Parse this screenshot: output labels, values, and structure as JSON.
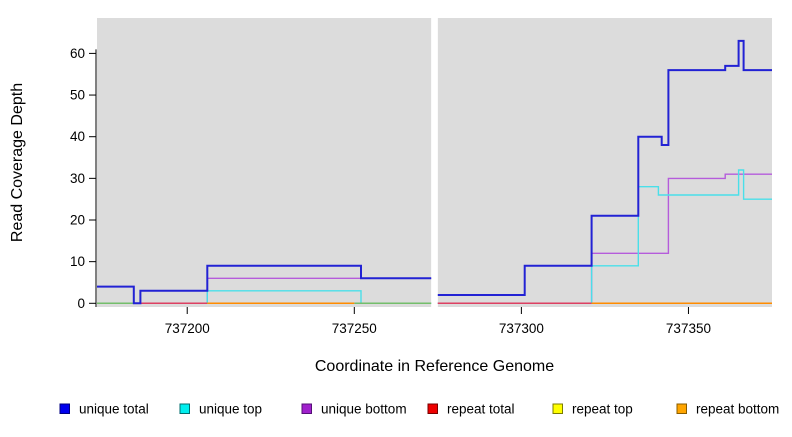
{
  "chart_data": {
    "type": "step-line",
    "title": "",
    "xlabel": "Coordinate in Reference Genome",
    "ylabel": "Read Coverage Depth",
    "xlim": [
      737173,
      737375
    ],
    "ylim": [
      0,
      68.5
    ],
    "xticks": [
      737200,
      737250,
      737300,
      737350
    ],
    "xtick_labels": [
      "737200",
      "737250",
      "737300",
      "737350"
    ],
    "yticks": [
      0,
      10,
      20,
      30,
      40,
      50,
      60
    ],
    "ytick_labels": [
      "0",
      "10",
      "20",
      "30",
      "40",
      "50",
      "60"
    ],
    "plot_background": "#dcdcdc",
    "no_data_gap": [
      737273,
      737275
    ],
    "grid": "off",
    "legend_position": "bottom",
    "series": [
      {
        "name": "unique bottom",
        "color": "#b55cdb",
        "width": 1.4,
        "segments": [
          [
            737185,
            737206,
            0
          ],
          [
            737206,
            737273,
            6
          ],
          [
            737275,
            737321,
            0
          ],
          [
            737321,
            737344,
            12
          ],
          [
            737344,
            737361,
            30
          ],
          [
            737361,
            737375,
            31
          ]
        ]
      },
      {
        "name": "unique top",
        "color": "#4adfe9",
        "width": 1.4,
        "segments": [
          [
            737173,
            737206,
            0
          ],
          [
            737206,
            737252,
            3
          ],
          [
            737252,
            737273,
            0
          ],
          [
            737275,
            737321,
            0
          ],
          [
            737321,
            737335,
            9
          ],
          [
            737335,
            737341,
            28
          ],
          [
            737341,
            737365,
            26
          ],
          [
            737365,
            737366.5,
            32
          ],
          [
            737366.5,
            737375,
            25
          ]
        ]
      },
      {
        "name": "repeat total",
        "color": "#dd4062",
        "width": 1.5,
        "segments": [
          [
            737185,
            737206,
            0
          ],
          [
            737275,
            737321,
            0
          ]
        ]
      },
      {
        "name": "repeat top",
        "color": "#74be6b",
        "width": 1.5,
        "segments": [
          [
            737173,
            737185,
            0
          ],
          [
            737250,
            737273,
            0
          ]
        ]
      },
      {
        "name": "repeat bottom",
        "color": "#ff8c00",
        "width": 1.5,
        "segments": [
          [
            737206,
            737250,
            0
          ],
          [
            737321,
            737375,
            0
          ]
        ]
      },
      {
        "name": "unique total",
        "color": "#2222d4",
        "width": 2,
        "segments": [
          [
            737173,
            737184,
            4
          ],
          [
            737184,
            737186,
            0
          ],
          [
            737186,
            737206,
            3
          ],
          [
            737206,
            737252,
            9
          ],
          [
            737252,
            737273,
            6
          ],
          [
            737275,
            737301,
            2
          ],
          [
            737301,
            737321,
            9
          ],
          [
            737321,
            737335,
            21
          ],
          [
            737335,
            737342,
            40
          ],
          [
            737342,
            737344,
            38
          ],
          [
            737344,
            737361,
            56
          ],
          [
            737361,
            737365,
            57
          ],
          [
            737365,
            737366.5,
            63
          ],
          [
            737366.5,
            737375,
            56
          ]
        ]
      }
    ],
    "legend": [
      {
        "label": "unique total",
        "color": "#0000ee",
        "border": "#000080"
      },
      {
        "label": "unique top",
        "color": "#00eeee",
        "border": "#006e6e"
      },
      {
        "label": "unique bottom",
        "color": "#a020cc",
        "border": "#551077"
      },
      {
        "label": "repeat total",
        "color": "#ee0000",
        "border": "#770000"
      },
      {
        "label": "repeat top",
        "color": "#ffff00",
        "border": "#7c7c00"
      },
      {
        "label": "repeat bottom",
        "color": "#ffa500",
        "border": "#885c00"
      }
    ]
  }
}
